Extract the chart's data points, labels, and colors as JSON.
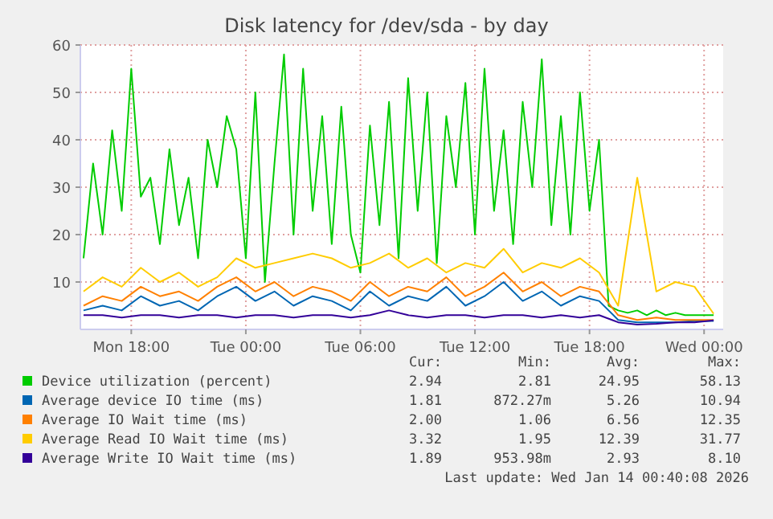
{
  "chart_data": {
    "type": "line",
    "title": "Disk latency for /dev/sda - by day",
    "xlim": [
      "2026-01-12T15:20",
      "2026-01-14T01:00"
    ],
    "xticks": [
      {
        "value": "2026-01-12T18:00",
        "label": "Mon 18:00"
      },
      {
        "value": "2026-01-13T00:00",
        "label": "Tue 00:00"
      },
      {
        "value": "2026-01-13T06:00",
        "label": "Tue 06:00"
      },
      {
        "value": "2026-01-13T12:00",
        "label": "Tue 12:00"
      },
      {
        "value": "2026-01-13T18:00",
        "label": "Tue 18:00"
      },
      {
        "value": "2026-01-14T00:00",
        "label": "Wed 00:00"
      }
    ],
    "ylim": [
      0,
      60
    ],
    "yticks": [
      10,
      20,
      30,
      40,
      50,
      60
    ],
    "grid": true,
    "legend": "bottom",
    "line_style": "solid",
    "series": [
      {
        "name": "Device utilization (percent)",
        "color": "#00cc00",
        "x": [
          "2026-01-12T15:30",
          "2026-01-12T16:00",
          "2026-01-12T16:30",
          "2026-01-12T17:00",
          "2026-01-12T17:30",
          "2026-01-12T18:00",
          "2026-01-12T18:30",
          "2026-01-12T19:00",
          "2026-01-12T19:30",
          "2026-01-12T20:00",
          "2026-01-12T20:30",
          "2026-01-12T21:00",
          "2026-01-12T21:30",
          "2026-01-12T22:00",
          "2026-01-12T22:30",
          "2026-01-12T23:00",
          "2026-01-12T23:30",
          "2026-01-13T00:00",
          "2026-01-13T00:30",
          "2026-01-13T01:00",
          "2026-01-13T01:30",
          "2026-01-13T02:00",
          "2026-01-13T02:30",
          "2026-01-13T03:00",
          "2026-01-13T03:30",
          "2026-01-13T04:00",
          "2026-01-13T04:30",
          "2026-01-13T05:00",
          "2026-01-13T05:30",
          "2026-01-13T06:00",
          "2026-01-13T06:30",
          "2026-01-13T07:00",
          "2026-01-13T07:30",
          "2026-01-13T08:00",
          "2026-01-13T08:30",
          "2026-01-13T09:00",
          "2026-01-13T09:30",
          "2026-01-13T10:00",
          "2026-01-13T10:30",
          "2026-01-13T11:00",
          "2026-01-13T11:30",
          "2026-01-13T12:00",
          "2026-01-13T12:30",
          "2026-01-13T13:00",
          "2026-01-13T13:30",
          "2026-01-13T14:00",
          "2026-01-13T14:30",
          "2026-01-13T15:00",
          "2026-01-13T15:30",
          "2026-01-13T16:00",
          "2026-01-13T16:30",
          "2026-01-13T17:00",
          "2026-01-13T17:30",
          "2026-01-13T18:00",
          "2026-01-13T18:30",
          "2026-01-13T19:00",
          "2026-01-13T19:30",
          "2026-01-13T20:00",
          "2026-01-13T20:30",
          "2026-01-13T21:00",
          "2026-01-13T21:30",
          "2026-01-13T22:00",
          "2026-01-13T22:30",
          "2026-01-13T23:00",
          "2026-01-13T23:30",
          "2026-01-14T00:00",
          "2026-01-14T00:30"
        ],
        "values": [
          15,
          35,
          20,
          42,
          25,
          55,
          28,
          32,
          18,
          38,
          22,
          32,
          15,
          40,
          30,
          45,
          38,
          15,
          50,
          10,
          35,
          58,
          20,
          55,
          25,
          45,
          18,
          47,
          20,
          12,
          43,
          22,
          48,
          15,
          53,
          25,
          50,
          14,
          45,
          30,
          52,
          20,
          55,
          25,
          42,
          18,
          48,
          30,
          57,
          22,
          45,
          20,
          50,
          25,
          40,
          5,
          4,
          3.5,
          4,
          3,
          4,
          3,
          3.5,
          3,
          3,
          3,
          3
        ]
      },
      {
        "name": "Average device IO time (ms)",
        "color": "#0066b3",
        "x": [
          "2026-01-12T15:30",
          "2026-01-12T16:30",
          "2026-01-12T17:30",
          "2026-01-12T18:30",
          "2026-01-12T19:30",
          "2026-01-12T20:30",
          "2026-01-12T21:30",
          "2026-01-12T22:30",
          "2026-01-12T23:30",
          "2026-01-13T00:30",
          "2026-01-13T01:30",
          "2026-01-13T02:30",
          "2026-01-13T03:30",
          "2026-01-13T04:30",
          "2026-01-13T05:30",
          "2026-01-13T06:30",
          "2026-01-13T07:30",
          "2026-01-13T08:30",
          "2026-01-13T09:30",
          "2026-01-13T10:30",
          "2026-01-13T11:30",
          "2026-01-13T12:30",
          "2026-01-13T13:30",
          "2026-01-13T14:30",
          "2026-01-13T15:30",
          "2026-01-13T16:30",
          "2026-01-13T17:30",
          "2026-01-13T18:30",
          "2026-01-13T19:30",
          "2026-01-13T20:30",
          "2026-01-13T21:30",
          "2026-01-13T22:30",
          "2026-01-13T23:30",
          "2026-01-14T00:30"
        ],
        "values": [
          4,
          5,
          4,
          7,
          5,
          6,
          4,
          7,
          9,
          6,
          8,
          5,
          7,
          6,
          4,
          8,
          5,
          7,
          6,
          9,
          5,
          7,
          10,
          6,
          8,
          5,
          7,
          6,
          2,
          1.5,
          1.5,
          1.5,
          1.8,
          1.8
        ]
      },
      {
        "name": "Average IO Wait time (ms)",
        "color": "#ff8000",
        "x": [
          "2026-01-12T15:30",
          "2026-01-12T16:30",
          "2026-01-12T17:30",
          "2026-01-12T18:30",
          "2026-01-12T19:30",
          "2026-01-12T20:30",
          "2026-01-12T21:30",
          "2026-01-12T22:30",
          "2026-01-12T23:30",
          "2026-01-13T00:30",
          "2026-01-13T01:30",
          "2026-01-13T02:30",
          "2026-01-13T03:30",
          "2026-01-13T04:30",
          "2026-01-13T05:30",
          "2026-01-13T06:30",
          "2026-01-13T07:30",
          "2026-01-13T08:30",
          "2026-01-13T09:30",
          "2026-01-13T10:30",
          "2026-01-13T11:30",
          "2026-01-13T12:30",
          "2026-01-13T13:30",
          "2026-01-13T14:30",
          "2026-01-13T15:30",
          "2026-01-13T16:30",
          "2026-01-13T17:30",
          "2026-01-13T18:30",
          "2026-01-13T19:30",
          "2026-01-13T20:30",
          "2026-01-13T21:30",
          "2026-01-13T22:30",
          "2026-01-13T23:30",
          "2026-01-14T00:30"
        ],
        "values": [
          5,
          7,
          6,
          9,
          7,
          8,
          6,
          9,
          11,
          8,
          10,
          7,
          9,
          8,
          6,
          10,
          7,
          9,
          8,
          11,
          7,
          9,
          12,
          8,
          10,
          7,
          9,
          8,
          3,
          2,
          2.5,
          2,
          2,
          2
        ]
      },
      {
        "name": "Average Read IO Wait time (ms)",
        "color": "#ffcc00",
        "x": [
          "2026-01-12T15:30",
          "2026-01-12T16:30",
          "2026-01-12T17:30",
          "2026-01-12T18:30",
          "2026-01-12T19:30",
          "2026-01-12T20:30",
          "2026-01-12T21:30",
          "2026-01-12T22:30",
          "2026-01-12T23:30",
          "2026-01-13T00:30",
          "2026-01-13T01:30",
          "2026-01-13T02:30",
          "2026-01-13T03:30",
          "2026-01-13T04:30",
          "2026-01-13T05:30",
          "2026-01-13T06:30",
          "2026-01-13T07:30",
          "2026-01-13T08:30",
          "2026-01-13T09:30",
          "2026-01-13T10:30",
          "2026-01-13T11:30",
          "2026-01-13T12:30",
          "2026-01-13T13:30",
          "2026-01-13T14:30",
          "2026-01-13T15:30",
          "2026-01-13T16:30",
          "2026-01-13T17:30",
          "2026-01-13T18:30",
          "2026-01-13T19:30",
          "2026-01-13T20:30",
          "2026-01-13T21:30",
          "2026-01-13T22:30",
          "2026-01-13T23:30",
          "2026-01-14T00:30"
        ],
        "values": [
          8,
          11,
          9,
          13,
          10,
          12,
          9,
          11,
          15,
          13,
          14,
          15,
          16,
          15,
          13,
          14,
          16,
          13,
          15,
          12,
          14,
          13,
          17,
          12,
          14,
          13,
          15,
          12,
          5,
          32,
          8,
          10,
          9,
          3.3
        ]
      },
      {
        "name": "Average Write IO Wait time (ms)",
        "color": "#330099",
        "x": [
          "2026-01-12T15:30",
          "2026-01-12T16:30",
          "2026-01-12T17:30",
          "2026-01-12T18:30",
          "2026-01-12T19:30",
          "2026-01-12T20:30",
          "2026-01-12T21:30",
          "2026-01-12T22:30",
          "2026-01-12T23:30",
          "2026-01-13T00:30",
          "2026-01-13T01:30",
          "2026-01-13T02:30",
          "2026-01-13T03:30",
          "2026-01-13T04:30",
          "2026-01-13T05:30",
          "2026-01-13T06:30",
          "2026-01-13T07:30",
          "2026-01-13T08:30",
          "2026-01-13T09:30",
          "2026-01-13T10:30",
          "2026-01-13T11:30",
          "2026-01-13T12:30",
          "2026-01-13T13:30",
          "2026-01-13T14:30",
          "2026-01-13T15:30",
          "2026-01-13T16:30",
          "2026-01-13T17:30",
          "2026-01-13T18:30",
          "2026-01-13T19:30",
          "2026-01-13T20:30",
          "2026-01-13T21:30",
          "2026-01-13T22:30",
          "2026-01-13T23:30",
          "2026-01-14T00:30"
        ],
        "values": [
          3,
          3,
          2.5,
          3,
          3,
          2.5,
          3,
          3,
          2.5,
          3,
          3,
          2.5,
          3,
          3,
          2.5,
          3,
          4,
          3,
          2.5,
          3,
          3,
          2.5,
          3,
          3,
          2.5,
          3,
          2.5,
          3,
          1.5,
          1,
          1.2,
          1.5,
          1.5,
          1.9
        ]
      }
    ],
    "annotations": [
      "Cur:",
      "Min:",
      "Avg:",
      "Max:",
      "2.94",
      "2.81",
      "24.95",
      "58.13",
      "1.81",
      "872.27m",
      "5.26",
      "10.94",
      "2.00",
      "1.06",
      "6.56",
      "12.35",
      "3.32",
      "1.95",
      "12.39",
      "31.77",
      "1.89",
      "953.98m",
      "2.93",
      "8.10",
      "Last update: Wed Jan 14 00:40:08 2026"
    ]
  }
}
